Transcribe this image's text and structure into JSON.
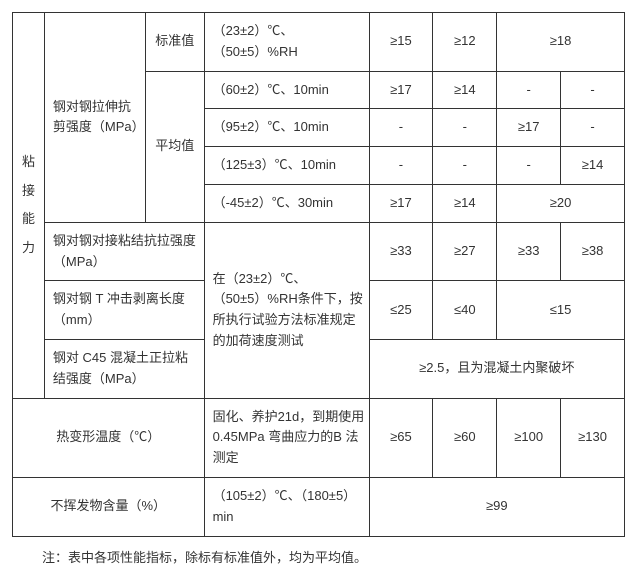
{
  "table": {
    "border_color": "#333333",
    "text_color": "#333333",
    "background_color": "#ffffff",
    "font_size": 13,
    "cat_label": "粘\n接\n能\n力",
    "r1_prop": "钢对钢拉伸抗剪强度（MPa）",
    "r1_sub1": "标准值",
    "r1_sub2": "平均值",
    "r1_cond": "（23±2）℃、（50±5）%RH",
    "r1_v1": "≥15",
    "r1_v2": "≥12",
    "r1_v3": "≥18",
    "r2_cond": "（60±2）℃、10min",
    "r2_v1": "≥17",
    "r2_v2": "≥14",
    "r2_v3": "-",
    "r2_v4": "-",
    "r3_cond": "（95±2）℃、10min",
    "r3_v1": "-",
    "r3_v2": "-",
    "r3_v3": "≥17",
    "r3_v4": "-",
    "r4_cond": "（125±3）℃、10min",
    "r4_v1": "-",
    "r4_v2": "-",
    "r4_v3": "-",
    "r4_v4": "≥14",
    "r5_cond": "（-45±2）℃、30min",
    "r5_v1": "≥17",
    "r5_v2": "≥14",
    "r5_v3": "≥20",
    "r6_prop": "钢对钢对接粘结抗拉强度（MPa）",
    "r6_v1": "≥33",
    "r6_v2": "≥27",
    "r6_v3": "≥33",
    "r6_v4": "≥38",
    "r6_cond": "在（23±2）℃、（50±5）%RH条件下，按所执行试验方法标准规定的加荷速度测试",
    "r7_prop": "钢对钢 T 冲击剥离长度（mm）",
    "r7_v1": "≤25",
    "r7_v2": "≤40",
    "r7_v3": "≤15",
    "r8_prop": "钢对 C45 混凝土正拉粘结强度（MPa）",
    "r8_v1": "≥2.5，且为混凝土内聚破坏",
    "r9_prop": "热变形温度（℃）",
    "r9_cond": "固化、养护21d，到期使用0.45MPa 弯曲应力的B 法测定",
    "r9_v1": "≥65",
    "r9_v2": "≥60",
    "r9_v3": "≥100",
    "r9_v4": "≥130",
    "r10_prop": "不挥发物含量（%）",
    "r10_cond": "（105±2）℃、（180±5）min",
    "r10_v1": "≥99"
  },
  "note": "注：表中各项性能指标，除标有标准值外，均为平均值。"
}
